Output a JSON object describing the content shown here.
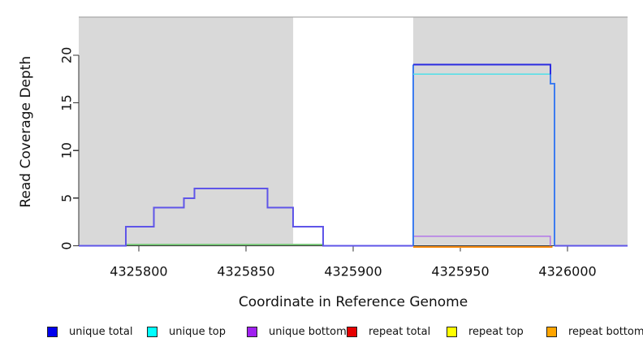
{
  "axes": {
    "x": {
      "label": "Coordinate in Reference Genome",
      "ticks": [
        4325800,
        4325850,
        4325900,
        4325950,
        4326000
      ],
      "tick_labels": [
        "4325800",
        "4325850",
        "4325900",
        "4325950",
        "4326000"
      ]
    },
    "y": {
      "label": "Read Coverage Depth",
      "ticks": [
        0,
        5,
        10,
        15,
        20
      ],
      "tick_labels": [
        "0",
        "5",
        "10",
        "15",
        "20"
      ]
    }
  },
  "legend": [
    {
      "label": "unique total",
      "color": "#0000ee"
    },
    {
      "label": "unique top",
      "color": "#00ffff"
    },
    {
      "label": "unique bottom",
      "color": "#a020f0"
    },
    {
      "label": "repeat total",
      "color": "#e60000"
    },
    {
      "label": "repeat top",
      "color": "#ffff00"
    },
    {
      "label": "repeat bottom",
      "color": "#ffa500"
    }
  ],
  "chart_data": {
    "type": "line",
    "subtype": "step-coverage",
    "title": "",
    "xlabel": "Coordinate in Reference Genome",
    "ylabel": "Read Coverage Depth",
    "xlim": [
      4325772,
      4326028
    ],
    "ylim": [
      0,
      24
    ],
    "grid": false,
    "legend_position": "bottom",
    "axis_color": "#333333",
    "shaded_regions": [
      {
        "x1": 4325772,
        "x2": 4325872,
        "color": "#d9d9d9"
      },
      {
        "x1": 4325928,
        "x2": 4326028,
        "color": "#d9d9d9"
      }
    ],
    "top_boundary_line": {
      "depth": 24,
      "color": "#9a9a9a"
    },
    "series": [
      {
        "name": "unique total",
        "segments": [
          [
            4325772,
            4325794,
            0
          ],
          [
            4325794,
            4325807,
            2
          ],
          [
            4325807,
            4325821,
            4
          ],
          [
            4325821,
            4325826,
            5
          ],
          [
            4325826,
            4325860,
            6
          ],
          [
            4325860,
            4325872,
            4
          ],
          [
            4325872,
            4325886,
            2
          ],
          [
            4325886,
            4325928,
            0
          ],
          [
            4325928,
            4325992,
            19
          ],
          [
            4325992,
            4325994,
            17
          ],
          [
            4325994,
            4326028,
            0
          ]
        ]
      },
      {
        "name": "unique top",
        "segments": [
          [
            4325772,
            4325928,
            0
          ],
          [
            4325928,
            4325992,
            18
          ],
          [
            4325992,
            4326028,
            0
          ]
        ]
      },
      {
        "name": "unique bottom",
        "segments": [
          [
            4325772,
            4325794,
            0
          ],
          [
            4325794,
            4325807,
            2
          ],
          [
            4325807,
            4325821,
            4
          ],
          [
            4325821,
            4325826,
            5
          ],
          [
            4325826,
            4325860,
            6
          ],
          [
            4325860,
            4325872,
            4
          ],
          [
            4325872,
            4325886,
            2
          ],
          [
            4325886,
            4325928,
            0
          ],
          [
            4325928,
            4325992,
            1
          ],
          [
            4325992,
            4326028,
            0
          ]
        ]
      },
      {
        "name": "repeat total",
        "segments": [
          [
            4325772,
            4326028,
            0
          ]
        ]
      },
      {
        "name": "repeat top",
        "segments": [
          [
            4325772,
            4326028,
            0
          ]
        ]
      },
      {
        "name": "repeat bottom",
        "segments": [
          [
            4325772,
            4326028,
            0
          ]
        ]
      }
    ],
    "render_lines": [
      {
        "name": "baseline-overlap-green",
        "color": "#7dc87d",
        "width": 1.6,
        "dy": -1.5,
        "points": [
          [
            4325794,
            0
          ],
          [
            4325886,
            0
          ]
        ]
      },
      {
        "name": "unique-step-left",
        "color": "#5f55e8",
        "width": 2,
        "dy": 0,
        "points": [
          [
            4325772,
            0
          ],
          [
            4325794,
            0
          ],
          [
            4325794,
            2
          ],
          [
            4325807,
            2
          ],
          [
            4325807,
            4
          ],
          [
            4325821,
            4
          ],
          [
            4325821,
            5
          ],
          [
            4325826,
            5
          ],
          [
            4325826,
            6
          ],
          [
            4325860,
            6
          ],
          [
            4325860,
            4
          ],
          [
            4325872,
            4
          ],
          [
            4325872,
            2
          ],
          [
            4325886,
            2
          ],
          [
            4325886,
            0
          ],
          [
            4325928,
            0
          ]
        ]
      },
      {
        "name": "unique-step-right",
        "color": "#5f55e8",
        "width": 2,
        "dy": 0,
        "points": [
          [
            4325994,
            0
          ],
          [
            4326028,
            0
          ]
        ]
      },
      {
        "name": "unique-bottom-block",
        "color": "#b378e8",
        "width": 1.6,
        "dy": 0,
        "points": [
          [
            4325928,
            0
          ],
          [
            4325928,
            1
          ],
          [
            4325992,
            1
          ],
          [
            4325992,
            0
          ]
        ]
      },
      {
        "name": "repeat-bottom-block",
        "color": "#ff9016",
        "width": 2,
        "dy": 1.5,
        "points": [
          [
            4325928,
            0
          ],
          [
            4325993,
            0
          ]
        ]
      },
      {
        "name": "block-left-edge",
        "color": "#3d7cf0",
        "width": 2,
        "dy": 0,
        "points": [
          [
            4325928,
            0
          ],
          [
            4325928,
            19
          ]
        ]
      },
      {
        "name": "unique-top-block",
        "color": "#50e0e8",
        "width": 1.6,
        "dy": 0,
        "points": [
          [
            4325928,
            18
          ],
          [
            4325992,
            18
          ]
        ]
      },
      {
        "name": "unique-total-block",
        "color": "#2b2be0",
        "width": 2,
        "dy": 0,
        "points": [
          [
            4325928,
            19
          ],
          [
            4325992,
            19
          ],
          [
            4325992,
            18
          ]
        ]
      },
      {
        "name": "block-right-edge",
        "color": "#3d7cf0",
        "width": 2,
        "dy": 0,
        "points": [
          [
            4325992,
            18
          ],
          [
            4325992,
            17
          ],
          [
            4325994,
            17
          ],
          [
            4325994,
            0
          ]
        ]
      }
    ]
  }
}
